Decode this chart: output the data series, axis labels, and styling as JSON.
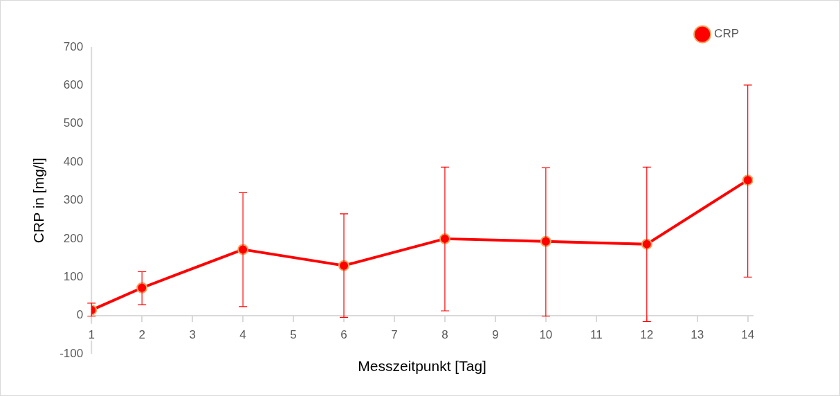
{
  "chart_data": {
    "type": "line",
    "xlabel": "Messzeitpunkt [Tag]",
    "ylabel": "CRP in [mg/l]",
    "x": [
      1,
      2,
      4,
      6,
      8,
      10,
      12,
      14
    ],
    "series": [
      {
        "name": "CRP",
        "color": "#ff0000",
        "values": [
          14,
          72,
          172,
          130,
          200,
          193,
          186,
          353
        ],
        "errors": [
          [
            -2,
            32
          ],
          [
            28,
            114
          ],
          [
            23,
            320
          ],
          [
            -5,
            265
          ],
          [
            12,
            387
          ],
          [
            -2,
            385
          ],
          [
            -16,
            387
          ],
          [
            100,
            601
          ]
        ]
      }
    ],
    "xlim": [
      1,
      14.1
    ],
    "xticks": [
      1,
      2,
      3,
      4,
      5,
      6,
      7,
      8,
      9,
      10,
      11,
      12,
      13,
      14
    ],
    "ylim": [
      -100,
      700
    ],
    "yticks": [
      -100,
      0,
      100,
      200,
      300,
      400,
      500,
      600,
      700
    ],
    "grid": false,
    "legend": "top right",
    "marker": "circle",
    "line_style": "solid"
  }
}
